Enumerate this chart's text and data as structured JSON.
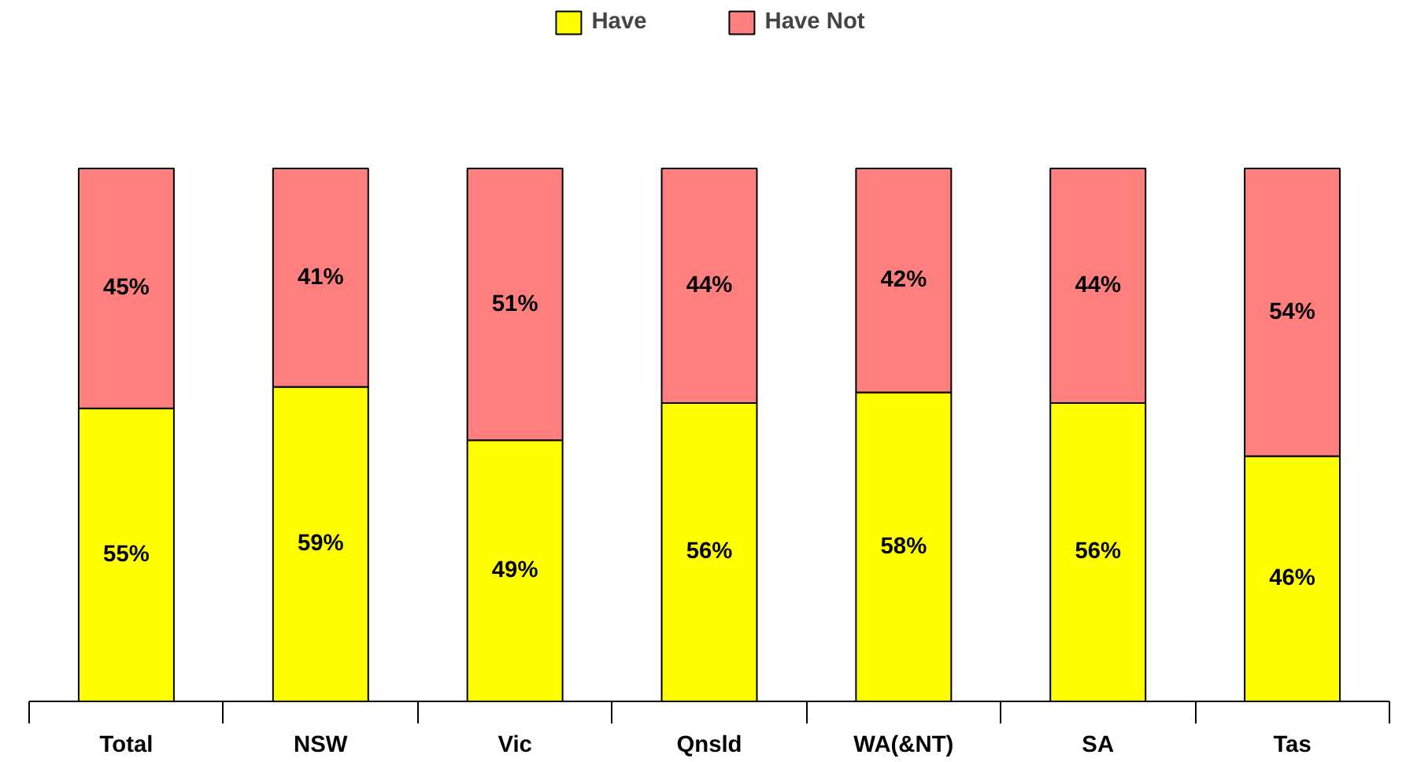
{
  "chart_data": {
    "type": "bar",
    "stacked": true,
    "legend": "top",
    "categories": [
      "Total",
      "NSW",
      "Vic",
      "Qnsld",
      "WA(&NT)",
      "SA",
      "Tas"
    ],
    "series": [
      {
        "name": "Have",
        "color": "#ffff00",
        "values": [
          55,
          59,
          49,
          56,
          58,
          56,
          46
        ],
        "value_labels": [
          "55%",
          "59%",
          "49%",
          "56%",
          "58%",
          "56%",
          "46%"
        ]
      },
      {
        "name": "Have Not",
        "color": "#ff7f7f",
        "values": [
          45,
          41,
          51,
          44,
          42,
          44,
          54
        ],
        "value_labels": [
          "45%",
          "41%",
          "51%",
          "44%",
          "42%",
          "44%",
          "54%"
        ]
      }
    ]
  }
}
